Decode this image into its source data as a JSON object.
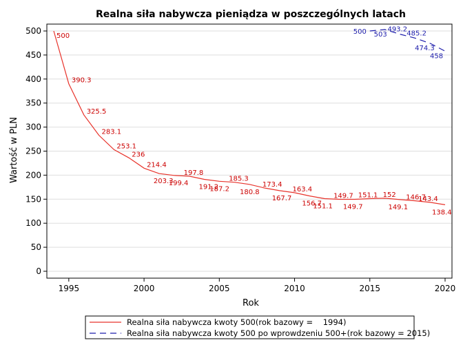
{
  "chart_data": {
    "type": "line",
    "title": "Realna siła nabywcza pieniądza w poszczególnych latach",
    "xlabel": "Rok",
    "ylabel": "Wartość w PLN",
    "xlim": [
      1994,
      2020
    ],
    "ylim": [
      0,
      500
    ],
    "xticks": [
      "1995",
      "2000",
      "2005",
      "2010",
      "2015",
      "2020"
    ],
    "yticks": [
      "0",
      "50",
      "100",
      "150",
      "200",
      "250",
      "300",
      "350",
      "400",
      "450",
      "500"
    ],
    "grid": "horizontal",
    "legend_position": "bottom",
    "series": [
      {
        "name": "Realna siła nabywcza kwoty 500(rok bazowy =    1994)",
        "color": "#e8322a",
        "style": "solid",
        "x": [
          1994,
          1995,
          1996,
          1997,
          1998,
          1999,
          2000,
          2001,
          2002,
          2003,
          2004,
          2005,
          2006,
          2007,
          2008,
          2009,
          2010,
          2011,
          2012,
          2013,
          2014,
          2015,
          2016,
          2017,
          2018,
          2019,
          2020
        ],
        "values": [
          500,
          390.3,
          325.5,
          283.1,
          253.1,
          236,
          214.4,
          203.3,
          199.4,
          197.8,
          191.2,
          187.2,
          185.3,
          180.8,
          173.4,
          167.7,
          163.4,
          156.7,
          151.1,
          149.7,
          149.7,
          151.1,
          152,
          149.1,
          146.7,
          143.4,
          138.4
        ],
        "labels": [
          "500",
          "390.3",
          "325.5",
          "283.1",
          "253.1",
          "236",
          "214.4",
          "203.3",
          "199.4",
          "197.8",
          "191.2",
          "187.2",
          "185.3",
          "180.8",
          "173.4",
          "167.7",
          "163.4",
          "156.7",
          "151.1",
          "149.7",
          "149.7",
          "151.1",
          "152",
          "149.1",
          "146.7",
          "143.4",
          "138.4"
        ]
      },
      {
        "name": "Realna siła nabywcza kwoty 500 po wprowdzeniu 500+(rok bazowy = 2015)",
        "color": "#1a1aaa",
        "style": "dashed",
        "x": [
          2015,
          2016,
          2017,
          2018,
          2019,
          2020
        ],
        "values": [
          500,
          503,
          493.2,
          485.2,
          474.3,
          458
        ],
        "labels": [
          "500",
          "503",
          "493.2",
          "485.2",
          "474.3",
          "458"
        ]
      }
    ]
  }
}
